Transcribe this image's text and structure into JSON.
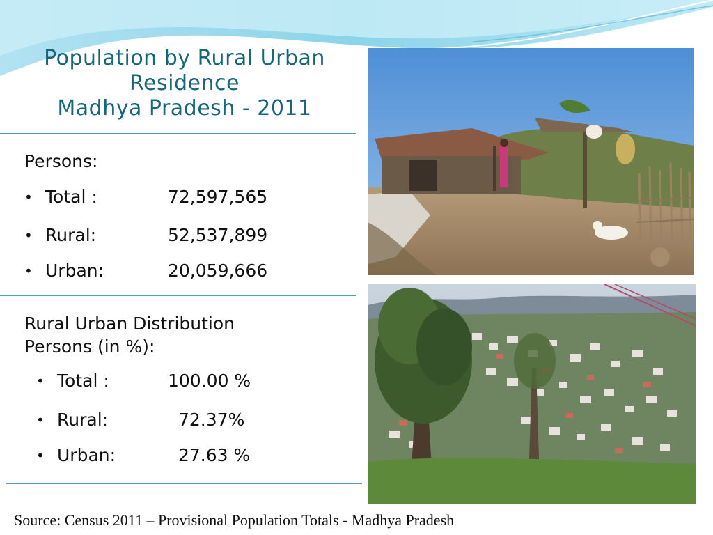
{
  "title": {
    "line1": "Population by Rural Urban",
    "line2": "Residence",
    "line3": "Madhya Pradesh - 2011"
  },
  "persons": {
    "heading": "Persons:",
    "items": [
      {
        "label": "Total :",
        "value": "72,597,565"
      },
      {
        "label": "Rural:",
        "value": "52,537,899"
      },
      {
        "label": "Urban:",
        "value": "20,059,666"
      }
    ]
  },
  "distribution": {
    "heading_line1": "Rural Urban Distribution",
    "heading_line2": "Persons (in %):",
    "items": [
      {
        "label": "Total :",
        "value": "100.00 %"
      },
      {
        "label": "Rural:",
        "value": "72.37%"
      },
      {
        "label": "Urban:",
        "value": "27.63 %"
      }
    ]
  },
  "bullet_glyph": "•",
  "source": "Source: Census 2011 – Provisional Population Totals - Madhya Pradesh",
  "colors": {
    "title": "#17667a",
    "rule": "#5b9aae",
    "wave": "#8fd3e6"
  }
}
